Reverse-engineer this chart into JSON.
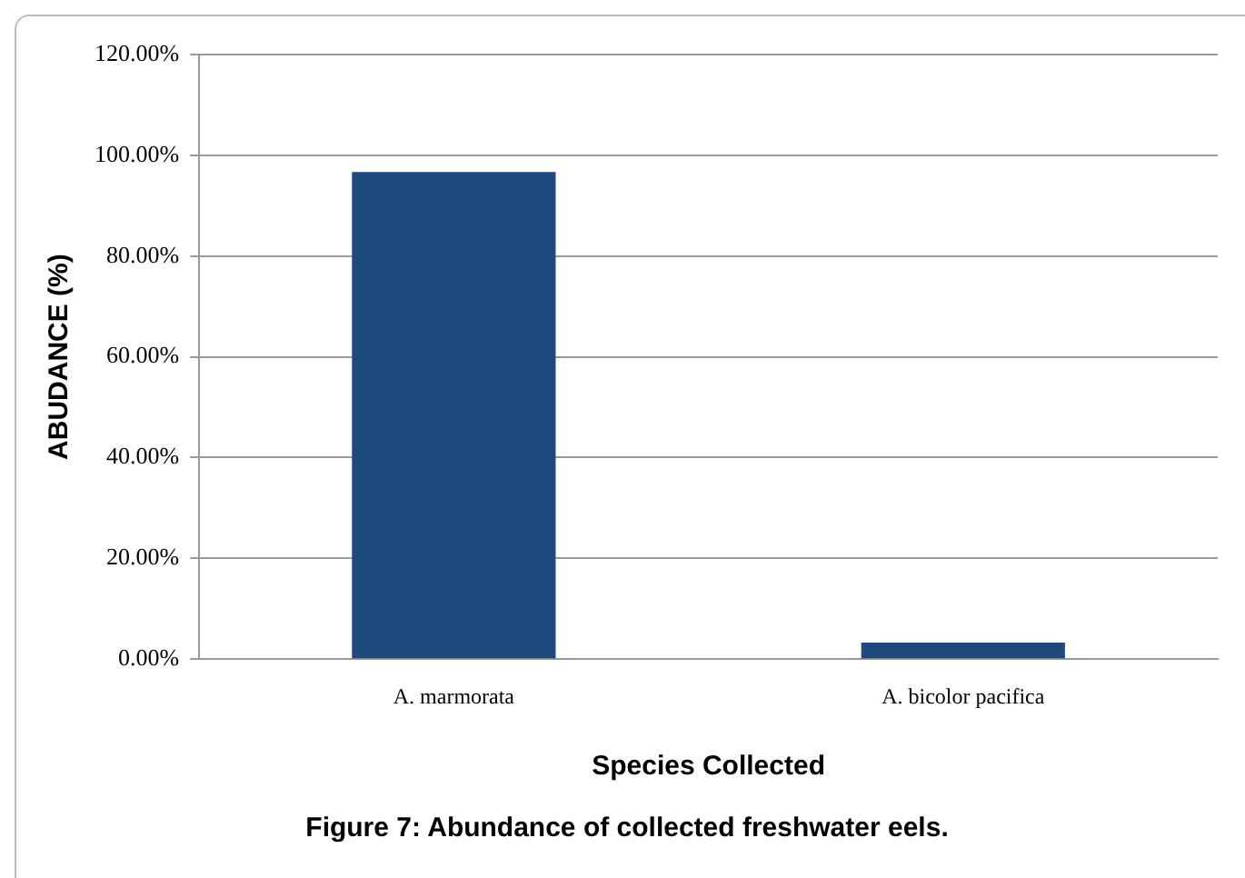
{
  "chart_data": {
    "type": "bar",
    "title": "Figure 7: Abundance of collected freshwater eels.",
    "xlabel": "Species Collected",
    "ylabel": "ABUDANCE (%)",
    "categories": [
      "A. marmorata",
      "A. bicolor pacifica"
    ],
    "values": [
      96.7,
      3.3
    ],
    "color": "#1f497d",
    "ylim": [
      0,
      120
    ],
    "yticks": [
      {
        "value": 0,
        "label": "0.00%"
      },
      {
        "value": 20,
        "label": "20.00%"
      },
      {
        "value": 40,
        "label": "40.00%"
      },
      {
        "value": 60,
        "label": "60.00%"
      },
      {
        "value": 80,
        "label": "80.00%"
      },
      {
        "value": 100,
        "label": "100.00%"
      },
      {
        "value": 120,
        "label": "120.00%"
      }
    ],
    "grid": "y",
    "legend": false
  }
}
